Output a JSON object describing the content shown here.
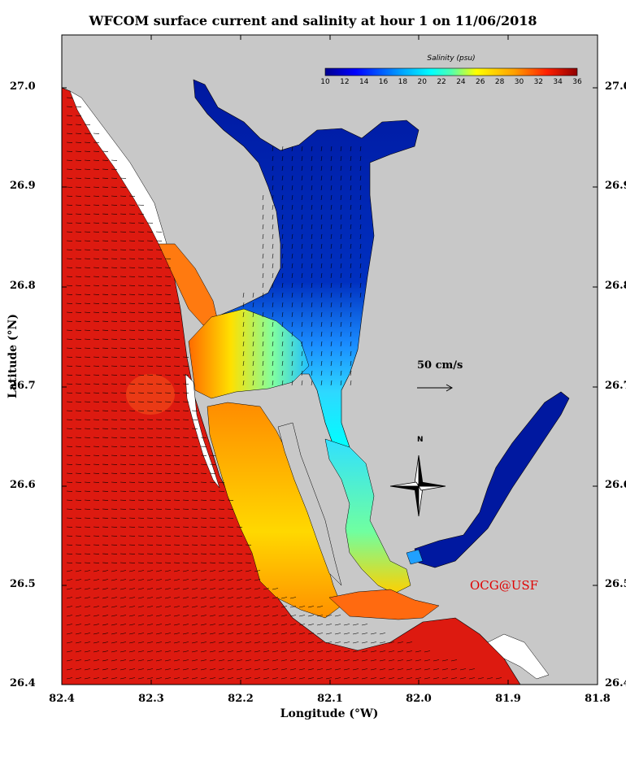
{
  "title": "WFCOM surface current and salinity at hour 1 on 11/06/2018",
  "xlabel": "Longitude (°W)",
  "ylabel": "Latitude (°N)",
  "x_ticks": [
    "82.4",
    "82.3",
    "82.2",
    "82.1",
    "82.0",
    "81.9",
    "81.8"
  ],
  "y_ticks": [
    "27.0",
    "26.9",
    "26.8",
    "26.7",
    "26.6",
    "26.5",
    "26.4"
  ],
  "colorbar": {
    "title": "Salinity (psu)",
    "labels": [
      "10",
      "12",
      "14",
      "16",
      "18",
      "20",
      "22",
      "24",
      "26",
      "28",
      "30",
      "32",
      "34",
      "36"
    ],
    "range": [
      10,
      36
    ]
  },
  "scale_arrow_label": "50 cm/s",
  "compass_label": "N",
  "credit": "OCG@USF",
  "colors": {
    "land": "#c8c8c8",
    "gulf": "#dd1a10",
    "credit": "#e00000"
  }
}
